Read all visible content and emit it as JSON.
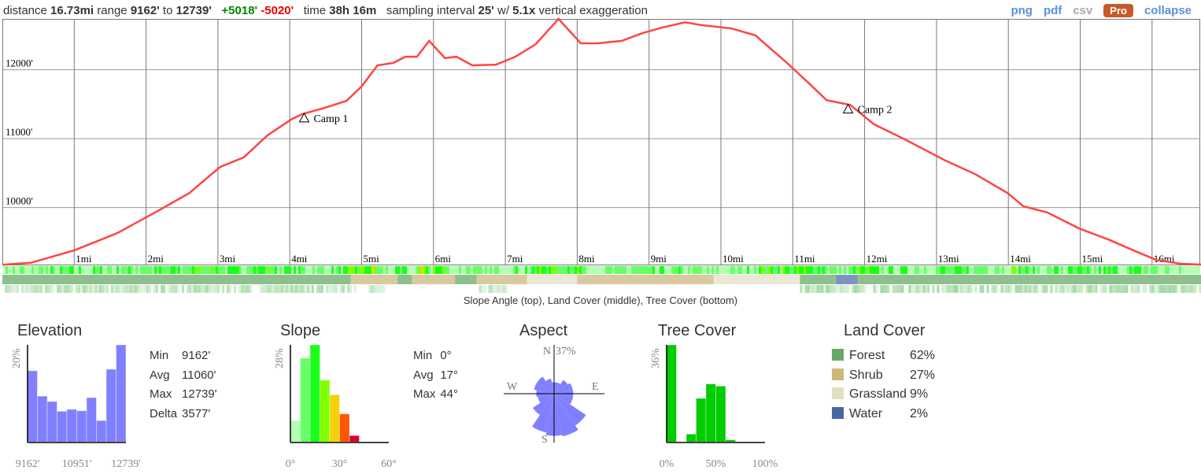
{
  "header": {
    "distance_label": "distance",
    "distance": "16.73mi",
    "range_label": "range",
    "range_min": "9162'",
    "range_to": "to",
    "range_max": "12739'",
    "gain": "+5018'",
    "loss": "-5020'",
    "time_label": "time",
    "time": "38h 16m",
    "sampling_label": "sampling interval",
    "sampling": "25'",
    "w_label": "w/",
    "exaggeration": "5.1x",
    "exag_label": "vertical exaggeration"
  },
  "links": {
    "png": "png",
    "pdf": "pdf",
    "csv": "csv",
    "pro": "Pro",
    "collapse": "collapse"
  },
  "colors": {
    "profile": "#ff4444",
    "histogram": "#8080ff",
    "link": "#5b8ede",
    "pro": "#c85a2a"
  },
  "chart_data": [
    {
      "type": "line",
      "title": "",
      "xlabel": "",
      "ylabel": "",
      "xlim": [
        0,
        16.73
      ],
      "ylim": [
        9162,
        12739
      ],
      "grid": true,
      "y_ticks": [
        "10000'",
        "11000'",
        "12000'"
      ],
      "y_tick_values": [
        10000,
        11000,
        12000
      ],
      "x_ticks": [
        "1mi",
        "2mi",
        "3mi",
        "4mi",
        "5mi",
        "6mi",
        "7mi",
        "8mi",
        "9mi",
        "10mi",
        "11mi",
        "12mi",
        "13mi",
        "14mi",
        "15mi",
        "16mi"
      ],
      "x": [
        0,
        0.4,
        1.0,
        1.6,
        2.16,
        2.6,
        3.03,
        3.36,
        3.69,
        4.02,
        4.18,
        4.46,
        4.79,
        5.0,
        5.22,
        5.44,
        5.61,
        5.77,
        5.94,
        6.16,
        6.32,
        6.54,
        6.87,
        7.14,
        7.42,
        7.74,
        8.05,
        8.29,
        8.62,
        8.9,
        9.17,
        9.5,
        9.72,
        10.15,
        10.48,
        10.92,
        11.25,
        11.47,
        11.8,
        12.13,
        12.56,
        13.11,
        13.55,
        13.99,
        14.21,
        14.54,
        14.98,
        15.41,
        15.74,
        16.06,
        16.4,
        16.73
      ],
      "y": [
        9170,
        9200,
        9380,
        9630,
        9950,
        10210,
        10590,
        10730,
        11050,
        11280,
        11360,
        11440,
        11550,
        11760,
        12065,
        12100,
        12190,
        12190,
        12420,
        12170,
        12190,
        12065,
        12075,
        12190,
        12370,
        12739,
        12385,
        12385,
        12420,
        12530,
        12610,
        12690,
        12650,
        12600,
        12500,
        12100,
        11780,
        11560,
        11490,
        11210,
        10990,
        10690,
        10480,
        10210,
        10020,
        9930,
        9700,
        9530,
        9380,
        9240,
        9185,
        9170
      ],
      "annotations": [
        {
          "label": "Camp 1",
          "x": 4.2,
          "y": 11300
        },
        {
          "label": "Camp 2",
          "x": 11.77,
          "y": 11430
        }
      ]
    },
    {
      "type": "bands",
      "caption": "Slope Angle (top), Land Cover (middle), Tree Cover (bottom)",
      "land_cover": [
        [
          0,
          4.85,
          "forest"
        ],
        [
          4.85,
          5.5,
          "shrub"
        ],
        [
          5.5,
          5.7,
          "forest"
        ],
        [
          5.7,
          6.3,
          "shrub"
        ],
        [
          6.3,
          6.6,
          "forest"
        ],
        [
          6.6,
          7.3,
          "shrub"
        ],
        [
          7.3,
          8.0,
          "grassland"
        ],
        [
          8.0,
          9.9,
          "shrub"
        ],
        [
          9.9,
          11.1,
          "grassland"
        ],
        [
          11.1,
          11.6,
          "forest"
        ],
        [
          11.6,
          11.9,
          "water"
        ],
        [
          11.9,
          16.73,
          "forest"
        ]
      ],
      "tree_cover": [
        [
          0,
          4.9,
          0.4
        ],
        [
          5.1,
          5.3,
          0.3
        ],
        [
          6.6,
          7.0,
          0.4
        ],
        [
          11.1,
          16.73,
          0.45
        ]
      ]
    },
    {
      "type": "bar",
      "title": "Elevation",
      "y_max_label": "20%",
      "x_labels": [
        "9162'",
        "10951'",
        "12739'"
      ],
      "values": [
        14.7,
        9.5,
        8.4,
        6.4,
        6.8,
        6.5,
        9.2,
        4.5,
        15.0,
        20.0
      ],
      "ylim": [
        0,
        20
      ]
    },
    {
      "type": "bar",
      "title": "Slope",
      "y_max_label": "28%",
      "x_labels": [
        "0°",
        "30°",
        "60°"
      ],
      "values": [
        6.3,
        24.2,
        28,
        17.9,
        13.7,
        8.2,
        2.0
      ],
      "bar_colors": [
        "#b3ffb3",
        "#66ff66",
        "#19ff19",
        "#80ff00",
        "#f5d10a",
        "#ff5500",
        "#dd0033"
      ],
      "ylim": [
        0,
        28
      ],
      "bins": 10
    },
    {
      "type": "pie",
      "title": "Aspect",
      "subtype": "rose",
      "max_label": "37%",
      "directions": [
        "N",
        "W",
        "E",
        "S"
      ],
      "values": [
        9,
        9,
        13,
        15,
        15,
        15,
        30,
        34,
        33,
        31,
        20,
        13,
        14,
        16,
        16,
        12
      ]
    },
    {
      "type": "bar",
      "title": "Tree Cover",
      "y_max_label": "36%",
      "x_labels": [
        "0%",
        "50%",
        "100%"
      ],
      "values": [
        36,
        0,
        3.1,
        16.3,
        21.6,
        20.8,
        1.0,
        0,
        0,
        0
      ],
      "ylim": [
        0,
        36
      ]
    }
  ],
  "stats": {
    "elevation": [
      [
        "Min",
        "9162'"
      ],
      [
        "Avg",
        "11060'"
      ],
      [
        "Max",
        "12739'"
      ],
      [
        "Delta",
        "3577'"
      ]
    ],
    "slope": [
      [
        "Min",
        "0°"
      ],
      [
        "Avg",
        "17°"
      ],
      [
        "Max",
        "44°"
      ]
    ]
  },
  "land_cover": {
    "title": "Land Cover",
    "items": [
      {
        "label": "Forest",
        "pct": "62%",
        "color": "#66a866"
      },
      {
        "label": "Shrub",
        "pct": "27%",
        "color": "#ccb87a"
      },
      {
        "label": "Grassland",
        "pct": "9%",
        "color": "#e0e0c0"
      },
      {
        "label": "Water",
        "pct": "2%",
        "color": "#4868a0"
      }
    ]
  }
}
